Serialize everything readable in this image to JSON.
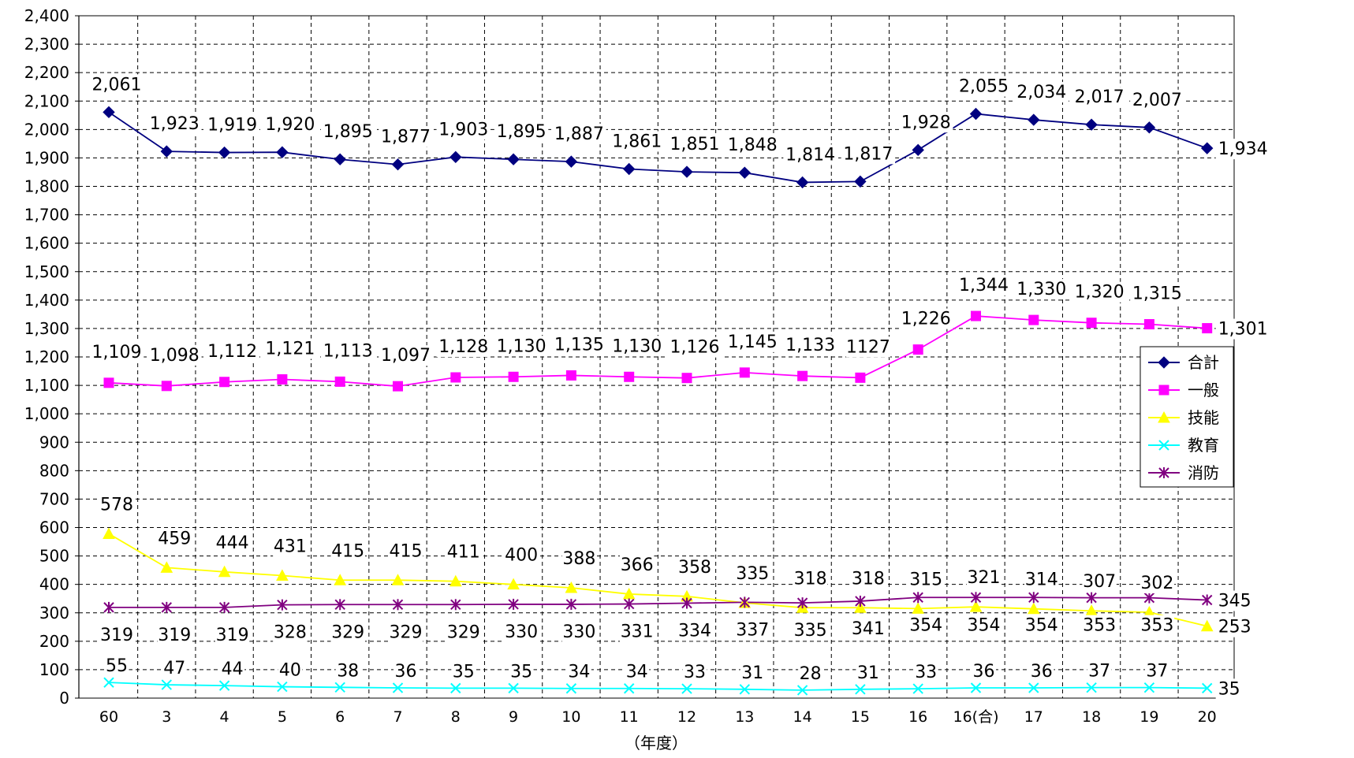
{
  "chart_data": {
    "type": "line",
    "title": "",
    "xlabel": "（年度）",
    "ylabel": "",
    "ylim": [
      0,
      2400
    ],
    "y_ticks": [
      0,
      100,
      200,
      300,
      400,
      500,
      600,
      700,
      800,
      900,
      1000,
      1100,
      1200,
      1300,
      1400,
      1500,
      1600,
      1700,
      1800,
      1900,
      2000,
      2100,
      2200,
      2300,
      2400
    ],
    "y_tick_labels": [
      "0",
      "100",
      "200",
      "300",
      "400",
      "500",
      "600",
      "700",
      "800",
      "900",
      "1,000",
      "1,100",
      "1,200",
      "1,300",
      "1,400",
      "1,500",
      "1,600",
      "1,700",
      "1,800",
      "1,900",
      "2,000",
      "2,100",
      "2,200",
      "2,300",
      "2,400"
    ],
    "grid": true,
    "legend_position": "right",
    "categories": [
      "60",
      "3",
      "4",
      "5",
      "6",
      "7",
      "8",
      "9",
      "10",
      "11",
      "12",
      "13",
      "14",
      "15",
      "16",
      "16(合)",
      "17",
      "18",
      "19",
      "20"
    ],
    "series": [
      {
        "name": "合計",
        "color": "#000080",
        "marker": "diamond",
        "values": [
          2061,
          1923,
          1919,
          1920,
          1895,
          1877,
          1903,
          1895,
          1887,
          1861,
          1851,
          1848,
          1814,
          1817,
          1928,
          2055,
          2034,
          2017,
          2007,
          1934
        ],
        "labels": [
          "2,061",
          "1,923",
          "1,919",
          "1,920",
          "1,895",
          "1,877",
          "1,903",
          "1,895",
          "1,887",
          "1,861",
          "1,851",
          "1,848",
          "1,814",
          "1,817",
          "1,928",
          "2,055",
          "2,034",
          "2,017",
          "2,007",
          "1,934"
        ]
      },
      {
        "name": "一般",
        "color": "#ff00ff",
        "marker": "square",
        "values": [
          1109,
          1098,
          1112,
          1121,
          1113,
          1097,
          1128,
          1130,
          1135,
          1130,
          1126,
          1145,
          1133,
          1127,
          1226,
          1344,
          1330,
          1320,
          1315,
          1301
        ],
        "labels": [
          "1,109",
          "1,098",
          "1,112",
          "1,121",
          "1,113",
          "1,097",
          "1,128",
          "1,130",
          "1,135",
          "1,130",
          "1,126",
          "1,145",
          "1,133",
          "1127",
          "1,226",
          "1,344",
          "1,330",
          "1,320",
          "1,315",
          "1,301"
        ]
      },
      {
        "name": "技能",
        "color": "#ffff00",
        "marker": "triangle",
        "values": [
          578,
          459,
          444,
          431,
          415,
          415,
          411,
          400,
          388,
          366,
          358,
          335,
          318,
          318,
          315,
          321,
          314,
          307,
          302,
          253
        ],
        "labels": [
          "578",
          "459",
          "444",
          "431",
          "415",
          "415",
          "411",
          "400",
          "388",
          "366",
          "358",
          "335",
          "318",
          "318",
          "315",
          "321",
          "314",
          "307",
          "302",
          "253"
        ]
      },
      {
        "name": "教育",
        "color": "#00ffff",
        "marker": "x",
        "values": [
          55,
          47,
          44,
          40,
          38,
          36,
          35,
          35,
          34,
          34,
          33,
          31,
          28,
          31,
          33,
          36,
          36,
          37,
          37,
          35
        ],
        "labels": [
          "55",
          "47",
          "44",
          "40",
          "38",
          "36",
          "35",
          "35",
          "34",
          "34",
          "33",
          "31",
          "28",
          "31",
          "33",
          "36",
          "36",
          "37",
          "37",
          "35"
        ]
      },
      {
        "name": "消防",
        "color": "#800080",
        "marker": "star",
        "values": [
          319,
          319,
          319,
          328,
          329,
          329,
          329,
          330,
          330,
          331,
          334,
          337,
          335,
          341,
          354,
          354,
          354,
          353,
          353,
          345
        ],
        "labels": [
          "319",
          "319",
          "319",
          "328",
          "329",
          "329",
          "329",
          "330",
          "330",
          "331",
          "334",
          "337",
          "335",
          "341",
          "354",
          "354",
          "354",
          "353",
          "353",
          "345"
        ]
      }
    ]
  }
}
